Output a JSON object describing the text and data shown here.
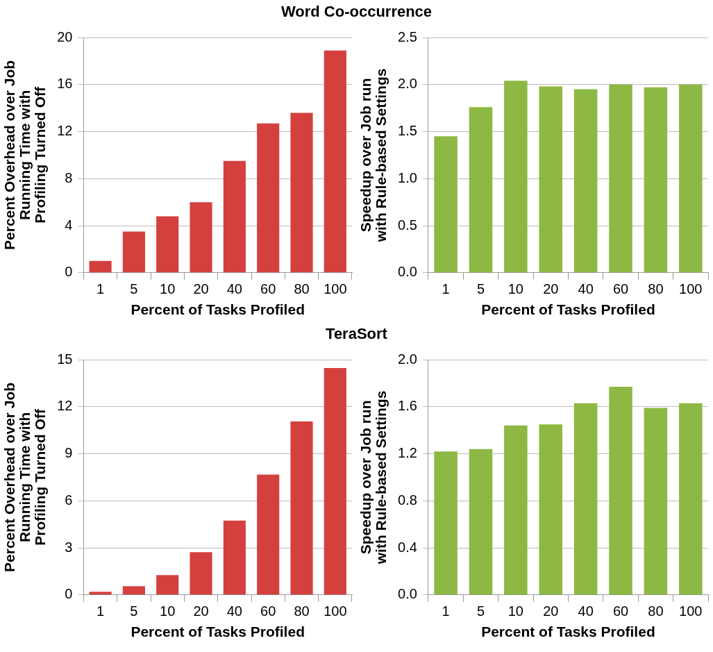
{
  "chart_data": [
    {
      "type": "bar",
      "title": "Word Co-occurrence",
      "xlabel": "Percent of Tasks Profiled",
      "ylabel": "Percent Overhead over Job\nRunning Time with\nProfiling Turned Off",
      "categories": [
        "1",
        "5",
        "10",
        "20",
        "40",
        "60",
        "80",
        "100"
      ],
      "values": [
        1.0,
        3.5,
        4.8,
        6.0,
        9.5,
        12.7,
        13.6,
        18.9
      ],
      "color": "#d4403e",
      "ylim": [
        0,
        20
      ],
      "yticks": [
        0,
        4,
        8,
        12,
        16,
        20
      ],
      "grid": "y",
      "legend": false
    },
    {
      "type": "bar",
      "xlabel": "Percent of Tasks Profiled",
      "ylabel": "Speedup over Job run\nwith Rule-based Settings",
      "categories": [
        "1",
        "5",
        "10",
        "20",
        "40",
        "60",
        "80",
        "100"
      ],
      "values": [
        1.45,
        1.76,
        2.04,
        1.98,
        1.95,
        2.0,
        1.97,
        2.0
      ],
      "color": "#8db843",
      "ylim": [
        0,
        2.5
      ],
      "yticks": [
        {
          "value": 0,
          "label": "0.0"
        },
        {
          "value": 0.5,
          "label": "0.5"
        },
        {
          "value": 1,
          "label": "1.0"
        },
        {
          "value": 1.5,
          "label": "1.5"
        },
        {
          "value": 2,
          "label": "2.0"
        },
        {
          "value": 2.5,
          "label": "2.5"
        }
      ],
      "grid": "y",
      "legend": false
    },
    {
      "type": "bar",
      "title": "TeraSort",
      "xlabel": "Percent of Tasks Profiled",
      "ylabel": "Percent Overhead over Job\nRunning Time with\nProfiling Turned Off",
      "categories": [
        "1",
        "5",
        "10",
        "20",
        "40",
        "60",
        "80",
        "100"
      ],
      "values": [
        0.2,
        0.56,
        1.26,
        2.73,
        4.74,
        7.67,
        11.06,
        14.47
      ],
      "color": "#d4403e",
      "ylim": [
        0,
        15
      ],
      "yticks": [
        0,
        3,
        6,
        9,
        12,
        15
      ],
      "grid": "y",
      "legend": false
    },
    {
      "type": "bar",
      "xlabel": "Percent of Tasks Profiled",
      "ylabel": "Speedup over Job run\nwith Rule-based Settings",
      "categories": [
        "1",
        "5",
        "10",
        "20",
        "40",
        "60",
        "80",
        "100"
      ],
      "values": [
        1.22,
        1.24,
        1.44,
        1.45,
        1.63,
        1.77,
        1.59,
        1.63
      ],
      "color": "#8db843",
      "ylim": [
        0,
        2
      ],
      "yticks": [
        {
          "value": 0,
          "label": "0.0"
        },
        {
          "value": 0.4,
          "label": "0.4"
        },
        {
          "value": 0.8,
          "label": "0.8"
        },
        {
          "value": 1.2,
          "label": "1.2"
        },
        {
          "value": 1.6,
          "label": "1.6"
        },
        {
          "value": 2,
          "label": "2.0"
        }
      ],
      "grid": "y",
      "legend": false
    }
  ]
}
